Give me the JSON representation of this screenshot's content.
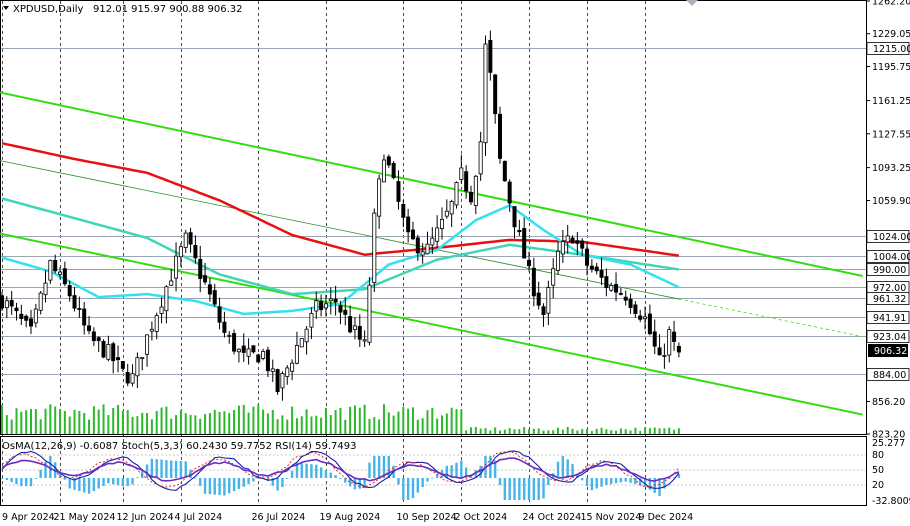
{
  "header": {
    "symbol": "XPDUSD,Daily",
    "ohlc": "912.01 915.97 900.88 906.32",
    "indicator_line": "OsMA(12,26,9) -0.6087   Stoch(5,3,3) 60.2430 59.7752   RSI(14) 59.7493"
  },
  "colors": {
    "candle": "#000000",
    "ema200": "#e81010",
    "ema144": "#3ed6b4",
    "ema50": "#33e0f0",
    "channel": "#33dd11",
    "midline": "#2a8a2a",
    "level_line": "#9aa6b4",
    "volume": "#2bb82b",
    "osma": "#46b4e8",
    "stoch_main": "#0d22a8",
    "stoch_signal": "#e01a1a",
    "rsi": "#6a2cc2",
    "current_box": "#000000"
  },
  "chart_data": {
    "type": "candlestick",
    "symbol": "XPDUSD",
    "timeframe": "Daily",
    "x_tick_labels": [
      "9 Apr 2024",
      "21 May 2024",
      "12 Jun 2024",
      "4 Jul 2024",
      "26 Jul 2024",
      "19 Aug 2024",
      "10 Sep 2024",
      "2 Oct 2024",
      "24 Oct 2024",
      "15 Nov 2024",
      "9 Dec 2024"
    ],
    "y_tick_labels": [
      "1262.20",
      "1229.05",
      "1195.75",
      "1161.25",
      "1127.55",
      "1093.25",
      "1059.90",
      "856.20",
      "823.20"
    ],
    "ylim": [
      823.2,
      1262.2
    ],
    "horizontal_levels": [
      {
        "value": 1215.0,
        "label": "1215.00"
      },
      {
        "value": 1024.0,
        "label": "1024.00"
      },
      {
        "value": 1004.0,
        "label": "1004.00"
      },
      {
        "value": 990.0,
        "label": "990.00"
      },
      {
        "value": 972.0,
        "label": "972.00"
      },
      {
        "value": 961.32,
        "label": "961.32"
      },
      {
        "value": 941.91,
        "label": "941.91"
      },
      {
        "value": 923.04,
        "label": "923.04"
      },
      {
        "value": 884.0,
        "label": "884.00"
      }
    ],
    "current_price": {
      "value": 906.32,
      "label": "906.32"
    },
    "last_ohlc": {
      "open": 912.01,
      "high": 915.97,
      "low": 900.88,
      "close": 906.32
    },
    "close_path_estimated": [
      [
        0,
        960
      ],
      [
        6,
        925
      ],
      [
        10,
        995
      ],
      [
        14,
        965
      ],
      [
        18,
        920
      ],
      [
        22,
        905
      ],
      [
        25,
        885
      ],
      [
        27,
        880
      ],
      [
        31,
        935
      ],
      [
        35,
        985
      ],
      [
        38,
        1020
      ],
      [
        42,
        975
      ],
      [
        46,
        925
      ],
      [
        50,
        900
      ],
      [
        54,
        905
      ],
      [
        57,
        868
      ],
      [
        61,
        912
      ],
      [
        65,
        950
      ],
      [
        69,
        958
      ],
      [
        72,
        932
      ],
      [
        75,
        912
      ],
      [
        77,
        1040
      ],
      [
        79,
        1110
      ],
      [
        81,
        1075
      ],
      [
        84,
        1020
      ],
      [
        88,
        1010
      ],
      [
        91,
        1035
      ],
      [
        93,
        1055
      ],
      [
        95,
        1085
      ],
      [
        97,
        1065
      ],
      [
        99,
        1120
      ],
      [
        100,
        1215
      ],
      [
        101,
        1185
      ],
      [
        103,
        1100
      ],
      [
        106,
        1040
      ],
      [
        109,
        985
      ],
      [
        112,
        945
      ],
      [
        115,
        1005
      ],
      [
        118,
        1025
      ],
      [
        121,
        995
      ],
      [
        125,
        975
      ],
      [
        129,
        965
      ],
      [
        133,
        940
      ],
      [
        136,
        895
      ],
      [
        138,
        925
      ],
      [
        139,
        912
      ],
      [
        140,
        906.32
      ]
    ],
    "overlays": [
      {
        "name": "EMA 200",
        "color": "#e81010",
        "points": [
          [
            0,
            1118
          ],
          [
            15,
            1102
          ],
          [
            30,
            1088
          ],
          [
            45,
            1060
          ],
          [
            60,
            1025
          ],
          [
            75,
            1005
          ],
          [
            90,
            1012
          ],
          [
            105,
            1020
          ],
          [
            120,
            1018
          ],
          [
            140,
            1004
          ]
        ]
      },
      {
        "name": "EMA 144",
        "color": "#3ed6b4",
        "points": [
          [
            0,
            1062
          ],
          [
            15,
            1042
          ],
          [
            30,
            1022
          ],
          [
            45,
            985
          ],
          [
            60,
            965
          ],
          [
            75,
            970
          ],
          [
            90,
            1000
          ],
          [
            105,
            1015
          ],
          [
            120,
            1005
          ],
          [
            140,
            990
          ]
        ]
      },
      {
        "name": "EMA 50",
        "color": "#33e0f0",
        "points": [
          [
            0,
            1002
          ],
          [
            10,
            988
          ],
          [
            20,
            962
          ],
          [
            30,
            965
          ],
          [
            40,
            958
          ],
          [
            50,
            945
          ],
          [
            60,
            948
          ],
          [
            70,
            955
          ],
          [
            80,
            995
          ],
          [
            90,
            1010
          ],
          [
            98,
            1040
          ],
          [
            105,
            1055
          ],
          [
            112,
            1030
          ],
          [
            120,
            1005
          ],
          [
            130,
            995
          ],
          [
            140,
            972
          ]
        ]
      }
    ],
    "channel": {
      "upper": [
        [
          0,
          1169
        ],
        [
          140,
          1023
        ]
      ],
      "lower": [
        [
          0,
          1026
        ],
        [
          140,
          882
        ]
      ],
      "middle": [
        [
          0,
          1100
        ],
        [
          140,
          960
        ]
      ],
      "projection_end_index": 178
    },
    "volume_note": "volume histogram along bottom of main panel",
    "indicators": {
      "osma": {
        "period": "12,26,9",
        "value": -0.6087
      },
      "stoch": {
        "period": "5,3,3",
        "main": 60.243,
        "signal": 59.7752
      },
      "rsi": {
        "period": 14,
        "value": 59.7493
      },
      "sub_y_tick_labels": [
        "25.277",
        "80",
        "50",
        "20",
        "-32.8009"
      ]
    }
  }
}
